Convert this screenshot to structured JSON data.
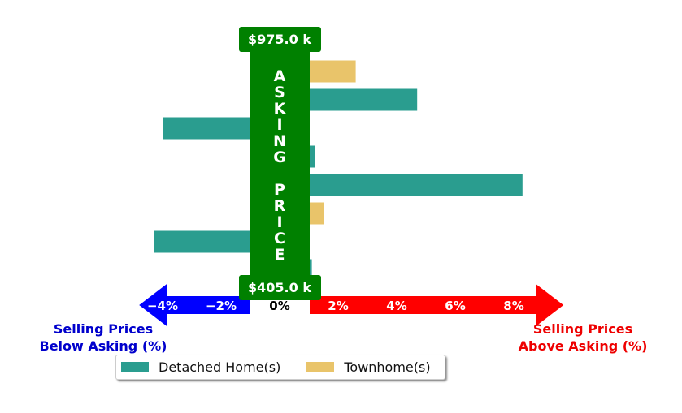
{
  "chart_data": {
    "type": "bar",
    "orientation": "horizontal",
    "price_top": "$975.0 k",
    "price_bottom": "$405.0 k",
    "center_label": "ASKING PRICE",
    "left_label": [
      "Selling Prices",
      "Below Asking (%)"
    ],
    "right_label": [
      "Selling Prices",
      "Above Asking (%)"
    ],
    "xlim": [
      -4.8,
      9.7
    ],
    "x_ticks": [
      {
        "value": -4,
        "label": "−4%"
      },
      {
        "value": -2,
        "label": "−2%"
      },
      {
        "value": 0,
        "label": "0%"
      },
      {
        "value": 2,
        "label": "2%"
      },
      {
        "value": 4,
        "label": "4%"
      },
      {
        "value": 6,
        "label": "6%"
      },
      {
        "value": 8,
        "label": "8%"
      }
    ],
    "series": [
      {
        "name": "Detached Home(s)",
        "color": "#2a9d8f",
        "bars": [
          {
            "row": 1,
            "value": 4.7
          },
          {
            "row": 2,
            "value": -4.0
          },
          {
            "row": 3,
            "value": 1.2
          },
          {
            "row": 4,
            "value": 8.3
          },
          {
            "row": 6,
            "value": -4.3
          },
          {
            "row": 7,
            "value": 1.1
          }
        ]
      },
      {
        "name": "Townhome(s)",
        "color": "#e9c46a",
        "bars": [
          {
            "row": 0,
            "value": 2.6
          },
          {
            "row": 5,
            "value": 1.5
          }
        ]
      }
    ],
    "grid": false,
    "legend_position": "bottom-left"
  },
  "colors": {
    "center_band": "#008000",
    "below_arrow": "#0000ff",
    "above_arrow": "#ff0000",
    "below_text": "#0000cc",
    "above_text": "#ee0000"
  }
}
